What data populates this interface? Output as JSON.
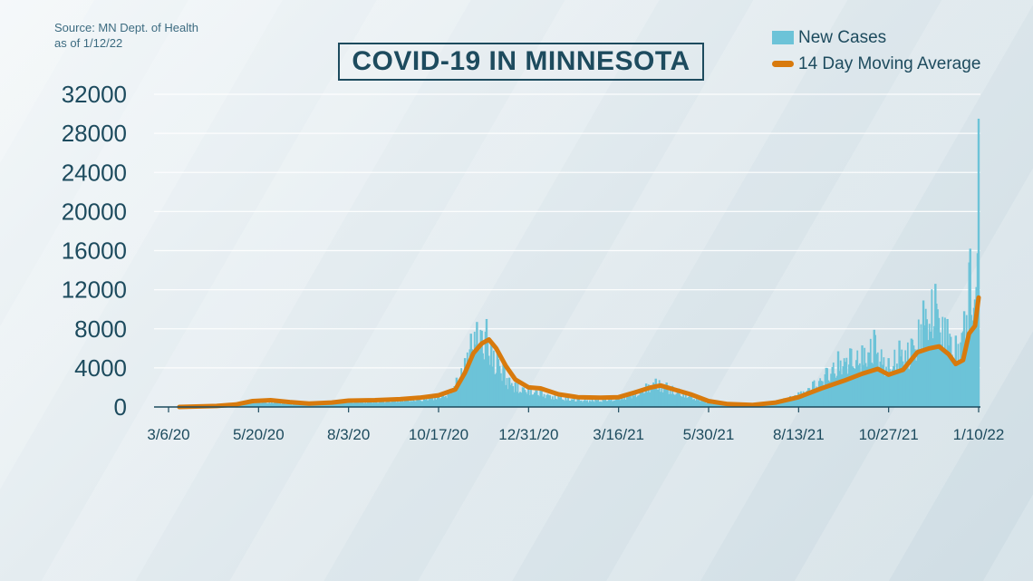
{
  "source": {
    "line1": "Source: MN Dept. of Health",
    "line2": "as of 1/12/22"
  },
  "title": "COVID-19 IN MINNESOTA",
  "legend": {
    "bars_label": "New Cases",
    "line_label": "14 Day Moving Average"
  },
  "colors": {
    "bars": "#6cc3d8",
    "line": "#d87a0d",
    "text": "#1d4b5e",
    "grid": "#ffffff",
    "axis": "#1d4b5e"
  },
  "chart_data": {
    "type": "bar",
    "title": "COVID-19 IN MINNESOTA",
    "xlabel": "",
    "ylabel": "",
    "ylim": [
      0,
      32000
    ],
    "yticks": [
      0,
      4000,
      8000,
      12000,
      16000,
      20000,
      24000,
      28000,
      32000
    ],
    "ytick_labels": [
      "0",
      "4000",
      "8000",
      "12000",
      "16000",
      "20000",
      "24000",
      "28000",
      "32000"
    ],
    "xtick_labels": [
      "3/6/20",
      "5/20/20",
      "8/3/20",
      "10/17/20",
      "12/31/20",
      "3/16/21",
      "5/30/21",
      "8/13/21",
      "10/27/21",
      "1/10/22"
    ],
    "xtick_dates": [
      "2020-03-06",
      "2020-05-20",
      "2020-08-03",
      "2020-10-17",
      "2020-12-31",
      "2021-03-16",
      "2021-05-30",
      "2021-08-13",
      "2021-10-27",
      "2022-01-10"
    ],
    "x_range": [
      "2020-03-06",
      "2022-01-10"
    ],
    "grid": true,
    "legend_position": "top-right",
    "series": [
      {
        "name": "New Cases",
        "kind": "bar",
        "points": [
          [
            "2020-03-06",
            0
          ],
          [
            "2020-03-20",
            30
          ],
          [
            "2020-04-03",
            80
          ],
          [
            "2020-04-17",
            180
          ],
          [
            "2020-05-01",
            350
          ],
          [
            "2020-05-10",
            600
          ],
          [
            "2020-05-20",
            700
          ],
          [
            "2020-06-05",
            600
          ],
          [
            "2020-06-20",
            350
          ],
          [
            "2020-07-05",
            500
          ],
          [
            "2020-07-20",
            650
          ],
          [
            "2020-08-03",
            700
          ],
          [
            "2020-08-20",
            700
          ],
          [
            "2020-09-05",
            800
          ],
          [
            "2020-09-20",
            900
          ],
          [
            "2020-10-05",
            1100
          ],
          [
            "2020-10-17",
            1300
          ],
          [
            "2020-10-25",
            1700
          ],
          [
            "2020-11-01",
            3000
          ],
          [
            "2020-11-08",
            5000
          ],
          [
            "2020-11-13",
            7500
          ],
          [
            "2020-11-18",
            8700
          ],
          [
            "2020-11-22",
            7800
          ],
          [
            "2020-11-26",
            9000
          ],
          [
            "2020-11-30",
            6500
          ],
          [
            "2020-12-05",
            5500
          ],
          [
            "2020-12-10",
            4500
          ],
          [
            "2020-12-15",
            3000
          ],
          [
            "2020-12-20",
            2500
          ],
          [
            "2020-12-31",
            2200
          ],
          [
            "2021-01-10",
            1800
          ],
          [
            "2021-01-25",
            1200
          ],
          [
            "2021-02-10",
            900
          ],
          [
            "2021-02-25",
            850
          ],
          [
            "2021-03-16",
            1100
          ],
          [
            "2021-03-28",
            1600
          ],
          [
            "2021-04-08",
            2400
          ],
          [
            "2021-04-16",
            2900
          ],
          [
            "2021-04-25",
            2500
          ],
          [
            "2021-05-05",
            1900
          ],
          [
            "2021-05-15",
            1400
          ],
          [
            "2021-05-30",
            600
          ],
          [
            "2021-06-15",
            300
          ],
          [
            "2021-07-01",
            200
          ],
          [
            "2021-07-15",
            350
          ],
          [
            "2021-08-01",
            900
          ],
          [
            "2021-08-13",
            1500
          ],
          [
            "2021-08-25",
            2600
          ],
          [
            "2021-09-05",
            4000
          ],
          [
            "2021-09-15",
            5700
          ],
          [
            "2021-09-25",
            6000
          ],
          [
            "2021-10-05",
            6300
          ],
          [
            "2021-10-15",
            7900
          ],
          [
            "2021-10-27",
            5000
          ],
          [
            "2021-11-05",
            6800
          ],
          [
            "2021-11-15",
            7000
          ],
          [
            "2021-11-25",
            10900
          ],
          [
            "2021-12-05",
            12600
          ],
          [
            "2021-12-15",
            9000
          ],
          [
            "2021-12-22",
            7300
          ],
          [
            "2021-12-29",
            9800
          ],
          [
            "2022-01-03",
            16200
          ],
          [
            "2022-01-07",
            11000
          ],
          [
            "2022-01-10",
            29500
          ]
        ]
      },
      {
        "name": "14 Day Moving Average",
        "kind": "line",
        "points": [
          [
            "2020-03-15",
            0
          ],
          [
            "2020-04-15",
            100
          ],
          [
            "2020-05-01",
            250
          ],
          [
            "2020-05-15",
            600
          ],
          [
            "2020-05-30",
            700
          ],
          [
            "2020-06-15",
            500
          ],
          [
            "2020-07-01",
            350
          ],
          [
            "2020-07-20",
            450
          ],
          [
            "2020-08-03",
            650
          ],
          [
            "2020-08-25",
            700
          ],
          [
            "2020-09-15",
            800
          ],
          [
            "2020-10-01",
            950
          ],
          [
            "2020-10-17",
            1200
          ],
          [
            "2020-10-31",
            1800
          ],
          [
            "2020-11-08",
            3500
          ],
          [
            "2020-11-15",
            5500
          ],
          [
            "2020-11-22",
            6500
          ],
          [
            "2020-11-28",
            6900
          ],
          [
            "2020-12-04",
            6000
          ],
          [
            "2020-12-12",
            4200
          ],
          [
            "2020-12-20",
            2800
          ],
          [
            "2020-12-31",
            2000
          ],
          [
            "2021-01-10",
            1900
          ],
          [
            "2021-01-25",
            1300
          ],
          [
            "2021-02-10",
            1000
          ],
          [
            "2021-03-01",
            950
          ],
          [
            "2021-03-16",
            1000
          ],
          [
            "2021-03-30",
            1500
          ],
          [
            "2021-04-12",
            2000
          ],
          [
            "2021-04-20",
            2200
          ],
          [
            "2021-05-01",
            1800
          ],
          [
            "2021-05-15",
            1300
          ],
          [
            "2021-05-30",
            600
          ],
          [
            "2021-06-15",
            300
          ],
          [
            "2021-07-05",
            200
          ],
          [
            "2021-07-25",
            450
          ],
          [
            "2021-08-13",
            1000
          ],
          [
            "2021-09-01",
            1900
          ],
          [
            "2021-09-20",
            2700
          ],
          [
            "2021-10-05",
            3400
          ],
          [
            "2021-10-18",
            3900
          ],
          [
            "2021-10-27",
            3300
          ],
          [
            "2021-11-08",
            3800
          ],
          [
            "2021-11-20",
            5600
          ],
          [
            "2021-11-30",
            6000
          ],
          [
            "2021-12-08",
            6200
          ],
          [
            "2021-12-16",
            5400
          ],
          [
            "2021-12-22",
            4400
          ],
          [
            "2021-12-28",
            4800
          ],
          [
            "2022-01-02",
            7500
          ],
          [
            "2022-01-07",
            8300
          ],
          [
            "2022-01-10",
            11200
          ]
        ]
      }
    ]
  }
}
